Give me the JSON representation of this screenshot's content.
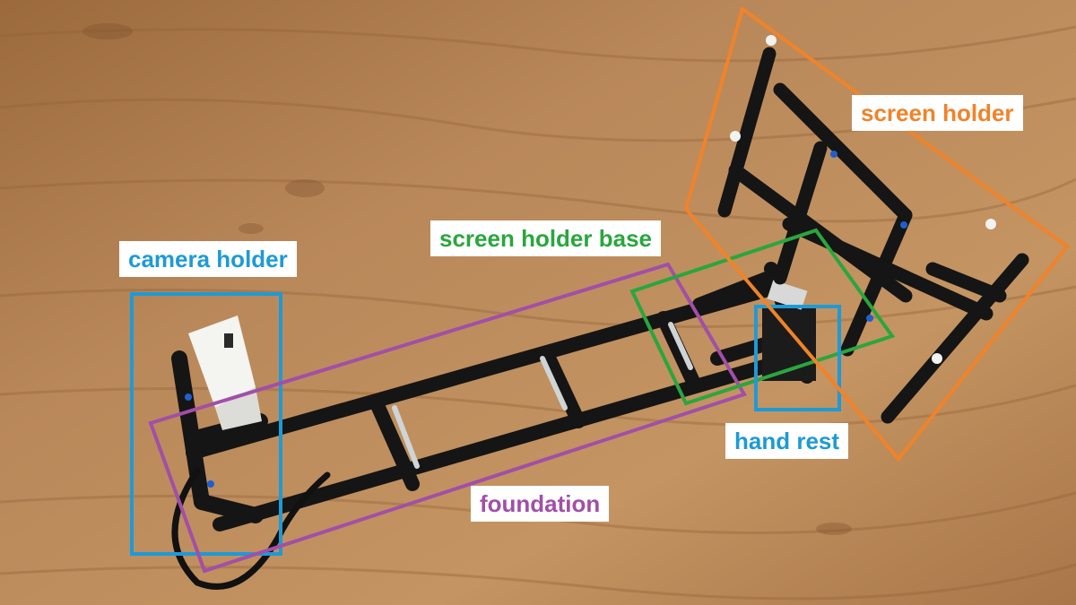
{
  "labels": {
    "camera_holder": "camera holder",
    "screen_holder_base": "screen holder base",
    "foundation": "foundation",
    "hand_rest": "hand rest",
    "screen_holder": "screen holder"
  },
  "colors": {
    "camera_holder": "#1e9ad6",
    "screen_holder_base": "#2aa63e",
    "foundation": "#a14fa8",
    "hand_rest": "#1e9ad6",
    "screen_holder": "#f0832a",
    "wood": "#b07f4c",
    "lego": "#151515"
  }
}
